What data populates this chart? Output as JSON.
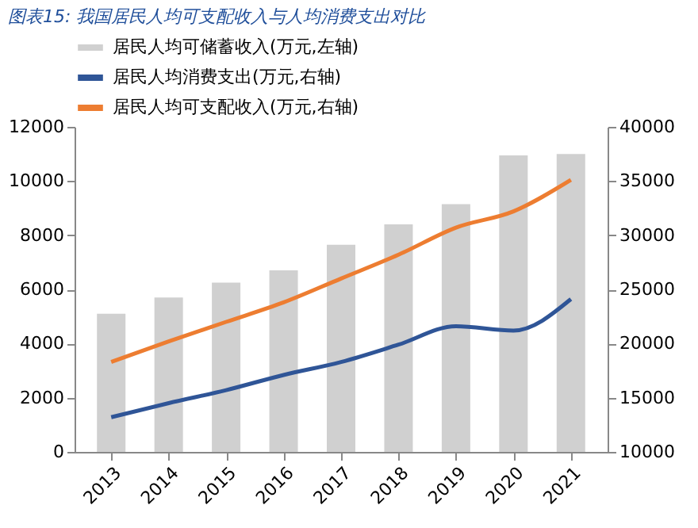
{
  "chart_data": {
    "type": "bar",
    "title": "图表15: 我国居民人均可支配收入与人均消费支出对比",
    "categories": [
      "2013",
      "2014",
      "2015",
      "2016",
      "2017",
      "2018",
      "2019",
      "2020",
      "2021"
    ],
    "series": [
      {
        "name": "居民人均可储蓄收入(万元,左轴)",
        "color": "#d0d0d0",
        "values": [
          5100,
          5700,
          6250,
          6700,
          7650,
          8400,
          9150,
          10950,
          11000
        ]
      },
      {
        "name": "居民人均消费支出(万元,右轴)",
        "type": "line",
        "axis": "y2",
        "color": "#2f5597",
        "values": [
          13200,
          14500,
          15700,
          17100,
          18300,
          19900,
          21600,
          21200,
          24100
        ]
      },
      {
        "name": "居民人均可支配收入(万元,右轴)",
        "type": "line",
        "axis": "y2",
        "color": "#ed7d31",
        "values": [
          18300,
          20200,
          22000,
          23800,
          26000,
          28200,
          30700,
          32200,
          35100
        ]
      }
    ],
    "ylim": [
      0,
      12000
    ],
    "yticks": [
      0,
      2000,
      4000,
      6000,
      8000,
      10000,
      12000
    ],
    "y2lim": [
      10000,
      40000
    ],
    "y2ticks": [
      10000,
      15000,
      20000,
      25000,
      30000,
      35000,
      40000
    ],
    "grid": false,
    "legend": "top"
  }
}
